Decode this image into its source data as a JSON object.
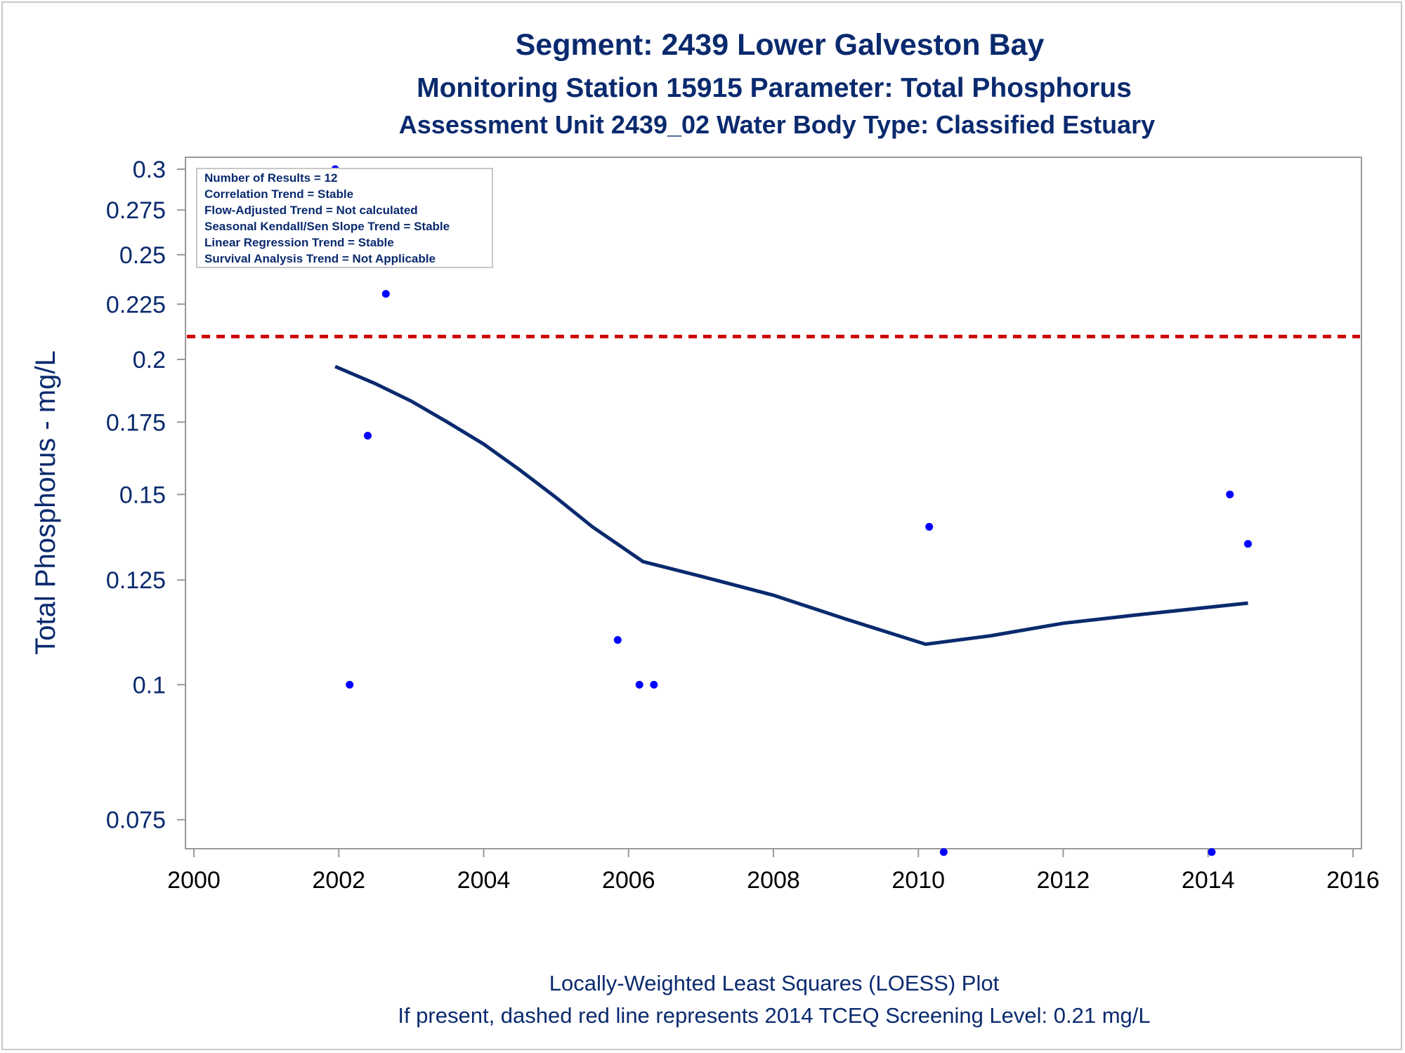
{
  "titles": {
    "line1": "Segment: 2439  Lower Galveston Bay",
    "line2": "Monitoring Station 15915 Parameter: Total Phosphorus",
    "line3": "Assessment Unit 2439_02   Water Body Type: Classified Estuary"
  },
  "footnotes": {
    "line1": "Locally-Weighted Least Squares (LOESS) Plot",
    "line2": "If present, dashed red line represents 2014 TCEQ Screening Level: 0.21 mg/L"
  },
  "stats_box": [
    "Number of Results = 12",
    "Correlation Trend = Stable",
    "Flow-Adjusted Trend = Not calculated",
    "Seasonal Kendall/Sen Slope Trend = Stable",
    "Linear Regression Trend = Stable",
    "Survival Analysis Trend = Not Applicable"
  ],
  "colors": {
    "text": "#0a2a6e",
    "points": "#0000ff",
    "loess": "#0a2a6e",
    "screening": "#cc0000",
    "axis": "#999999"
  },
  "chart_data": {
    "type": "scatter",
    "ylabel": "Total Phosphorus - mg/L",
    "xlabel": "",
    "y_scale": "log",
    "xlim": [
      2000,
      2016
    ],
    "ylim": [
      0.0705,
      0.3
    ],
    "x_ticks": [
      "2000",
      "2002",
      "2004",
      "2006",
      "2008",
      "2010",
      "2012",
      "2014",
      "2016"
    ],
    "y_ticks": [
      "0.075",
      "0.1",
      "0.125",
      "0.15",
      "0.175",
      "0.2",
      "0.225",
      "0.25",
      "0.275",
      "0.3"
    ],
    "points": [
      {
        "x": 2001.95,
        "y": 0.3
      },
      {
        "x": 2002.15,
        "y": 0.1
      },
      {
        "x": 2002.4,
        "y": 0.17
      },
      {
        "x": 2002.65,
        "y": 0.23
      },
      {
        "x": 2005.85,
        "y": 0.11
      },
      {
        "x": 2006.15,
        "y": 0.1
      },
      {
        "x": 2006.35,
        "y": 0.1
      },
      {
        "x": 2010.15,
        "y": 0.14
      },
      {
        "x": 2010.35,
        "y": 0.07
      },
      {
        "x": 2014.05,
        "y": 0.07
      },
      {
        "x": 2014.3,
        "y": 0.15
      },
      {
        "x": 2014.55,
        "y": 0.135
      }
    ],
    "loess": [
      {
        "x": 2001.95,
        "y": 0.197
      },
      {
        "x": 2002.5,
        "y": 0.19
      },
      {
        "x": 2003.0,
        "y": 0.183
      },
      {
        "x": 2003.5,
        "y": 0.175
      },
      {
        "x": 2004.0,
        "y": 0.167
      },
      {
        "x": 2004.5,
        "y": 0.158
      },
      {
        "x": 2005.0,
        "y": 0.149
      },
      {
        "x": 2005.5,
        "y": 0.14
      },
      {
        "x": 2006.2,
        "y": 0.13
      },
      {
        "x": 2007.0,
        "y": 0.126
      },
      {
        "x": 2008.0,
        "y": 0.121
      },
      {
        "x": 2009.0,
        "y": 0.115
      },
      {
        "x": 2010.1,
        "y": 0.109
      },
      {
        "x": 2011.0,
        "y": 0.111
      },
      {
        "x": 2012.0,
        "y": 0.114
      },
      {
        "x": 2013.0,
        "y": 0.116
      },
      {
        "x": 2014.55,
        "y": 0.119
      }
    ],
    "screening_level": 0.21
  }
}
